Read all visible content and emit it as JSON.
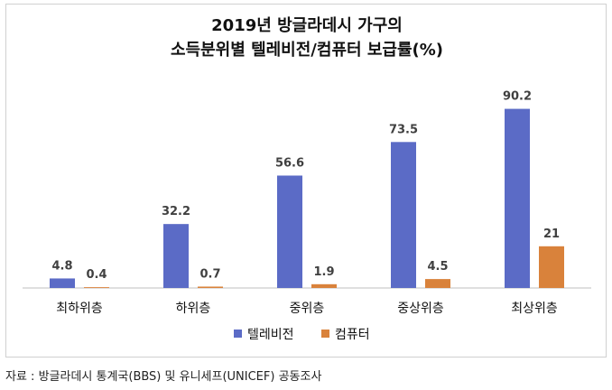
{
  "title_lines": [
    "2019년 방글라데시 가구의",
    "소득분위별 텔레비전/컴퓨터 보급률(%)"
  ],
  "source": "자료 : 방글라데시 통계국(BBS) 및 유니세프(UNICEF) 공동조사",
  "chart_data": {
    "type": "bar",
    "title": "2019년 방글라데시 가구의 소득분위별 텔레비전/컴퓨터 보급률(%)",
    "categories": [
      "최하위층",
      "하위층",
      "중위층",
      "중상위층",
      "최상위층"
    ],
    "series": [
      {
        "name": "텔레비전",
        "values": [
          4.8,
          32.2,
          56.6,
          73.5,
          90.2
        ],
        "labels": [
          "4.8",
          "32.2",
          "56.6",
          "73.5",
          "90.2"
        ],
        "color": "#5b6bc6"
      },
      {
        "name": "컴퓨터",
        "values": [
          0.4,
          0.7,
          1.9,
          4.5,
          21
        ],
        "labels": [
          "0.4",
          "0.7",
          "1.9",
          "4.5",
          "21"
        ],
        "color": "#d9823b"
      }
    ],
    "ylim": [
      0,
      100
    ],
    "grid": false,
    "legend": "bottom-center",
    "xlabel": "",
    "ylabel": ""
  }
}
